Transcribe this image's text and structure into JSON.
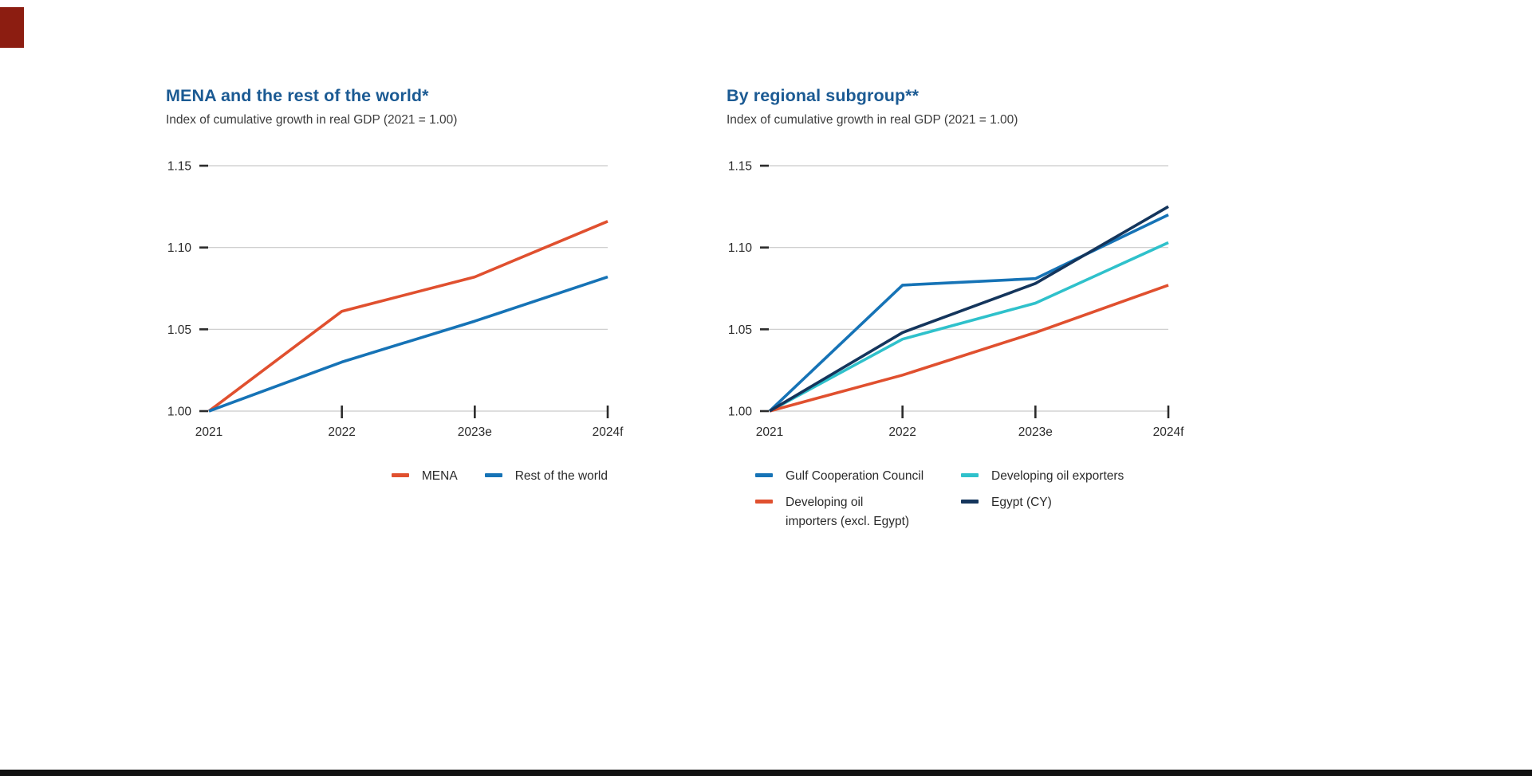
{
  "page": {
    "background": "#ffffff",
    "logo_mark_color": "#8c1d11",
    "footer_bar_color": "#111111"
  },
  "style": {
    "title_color": "#1b5a93",
    "subtitle_color": "#3d3d3d",
    "axis_label_color": "#2b2b2b",
    "tick_color": "#2b2b2b",
    "grid_color": "#c9c9c9",
    "legend_text_color": "#2b2b2b"
  },
  "chart_data": [
    {
      "type": "line",
      "title": "MENA and the rest of the world*",
      "subtitle": "Index of cumulative growth in real GDP (2021 = 1.00)",
      "x": [
        "2021",
        "2022",
        "2023e",
        "2024f"
      ],
      "ylim": [
        1.0,
        1.15
      ],
      "yticks": [
        1.0,
        1.05,
        1.1,
        1.15
      ],
      "grid": true,
      "legend_position": "bottom-right",
      "series": [
        {
          "name": "MENA",
          "color": "#e0502f",
          "values": [
            1.0,
            1.061,
            1.082,
            1.116
          ]
        },
        {
          "name": "Rest of the world",
          "color": "#1673b6",
          "values": [
            1.0,
            1.03,
            1.055,
            1.082
          ]
        }
      ]
    },
    {
      "type": "line",
      "title": "By regional subgroup**",
      "subtitle": "Index of cumulative growth in real GDP (2021 = 1.00)",
      "x": [
        "2021",
        "2022",
        "2023e",
        "2024f"
      ],
      "ylim": [
        1.0,
        1.15
      ],
      "yticks": [
        1.0,
        1.05,
        1.1,
        1.15
      ],
      "grid": true,
      "legend_position": "bottom-two-column",
      "series": [
        {
          "name": "Gulf Cooperation Council",
          "color": "#1673b6",
          "values": [
            1.0,
            1.077,
            1.081,
            1.12
          ]
        },
        {
          "name": "Developing oil exporters",
          "color": "#2fc1cb",
          "values": [
            1.0,
            1.044,
            1.066,
            1.103
          ]
        },
        {
          "name": "Developing oil importers (excl. Egypt)",
          "legend_label": "Developing oil\nimporters (excl. Egypt)",
          "color": "#e0502f",
          "values": [
            1.0,
            1.022,
            1.048,
            1.077
          ]
        },
        {
          "name": "Egypt (CY)",
          "color": "#14355c",
          "values": [
            1.0,
            1.048,
            1.078,
            1.125
          ]
        }
      ]
    }
  ]
}
